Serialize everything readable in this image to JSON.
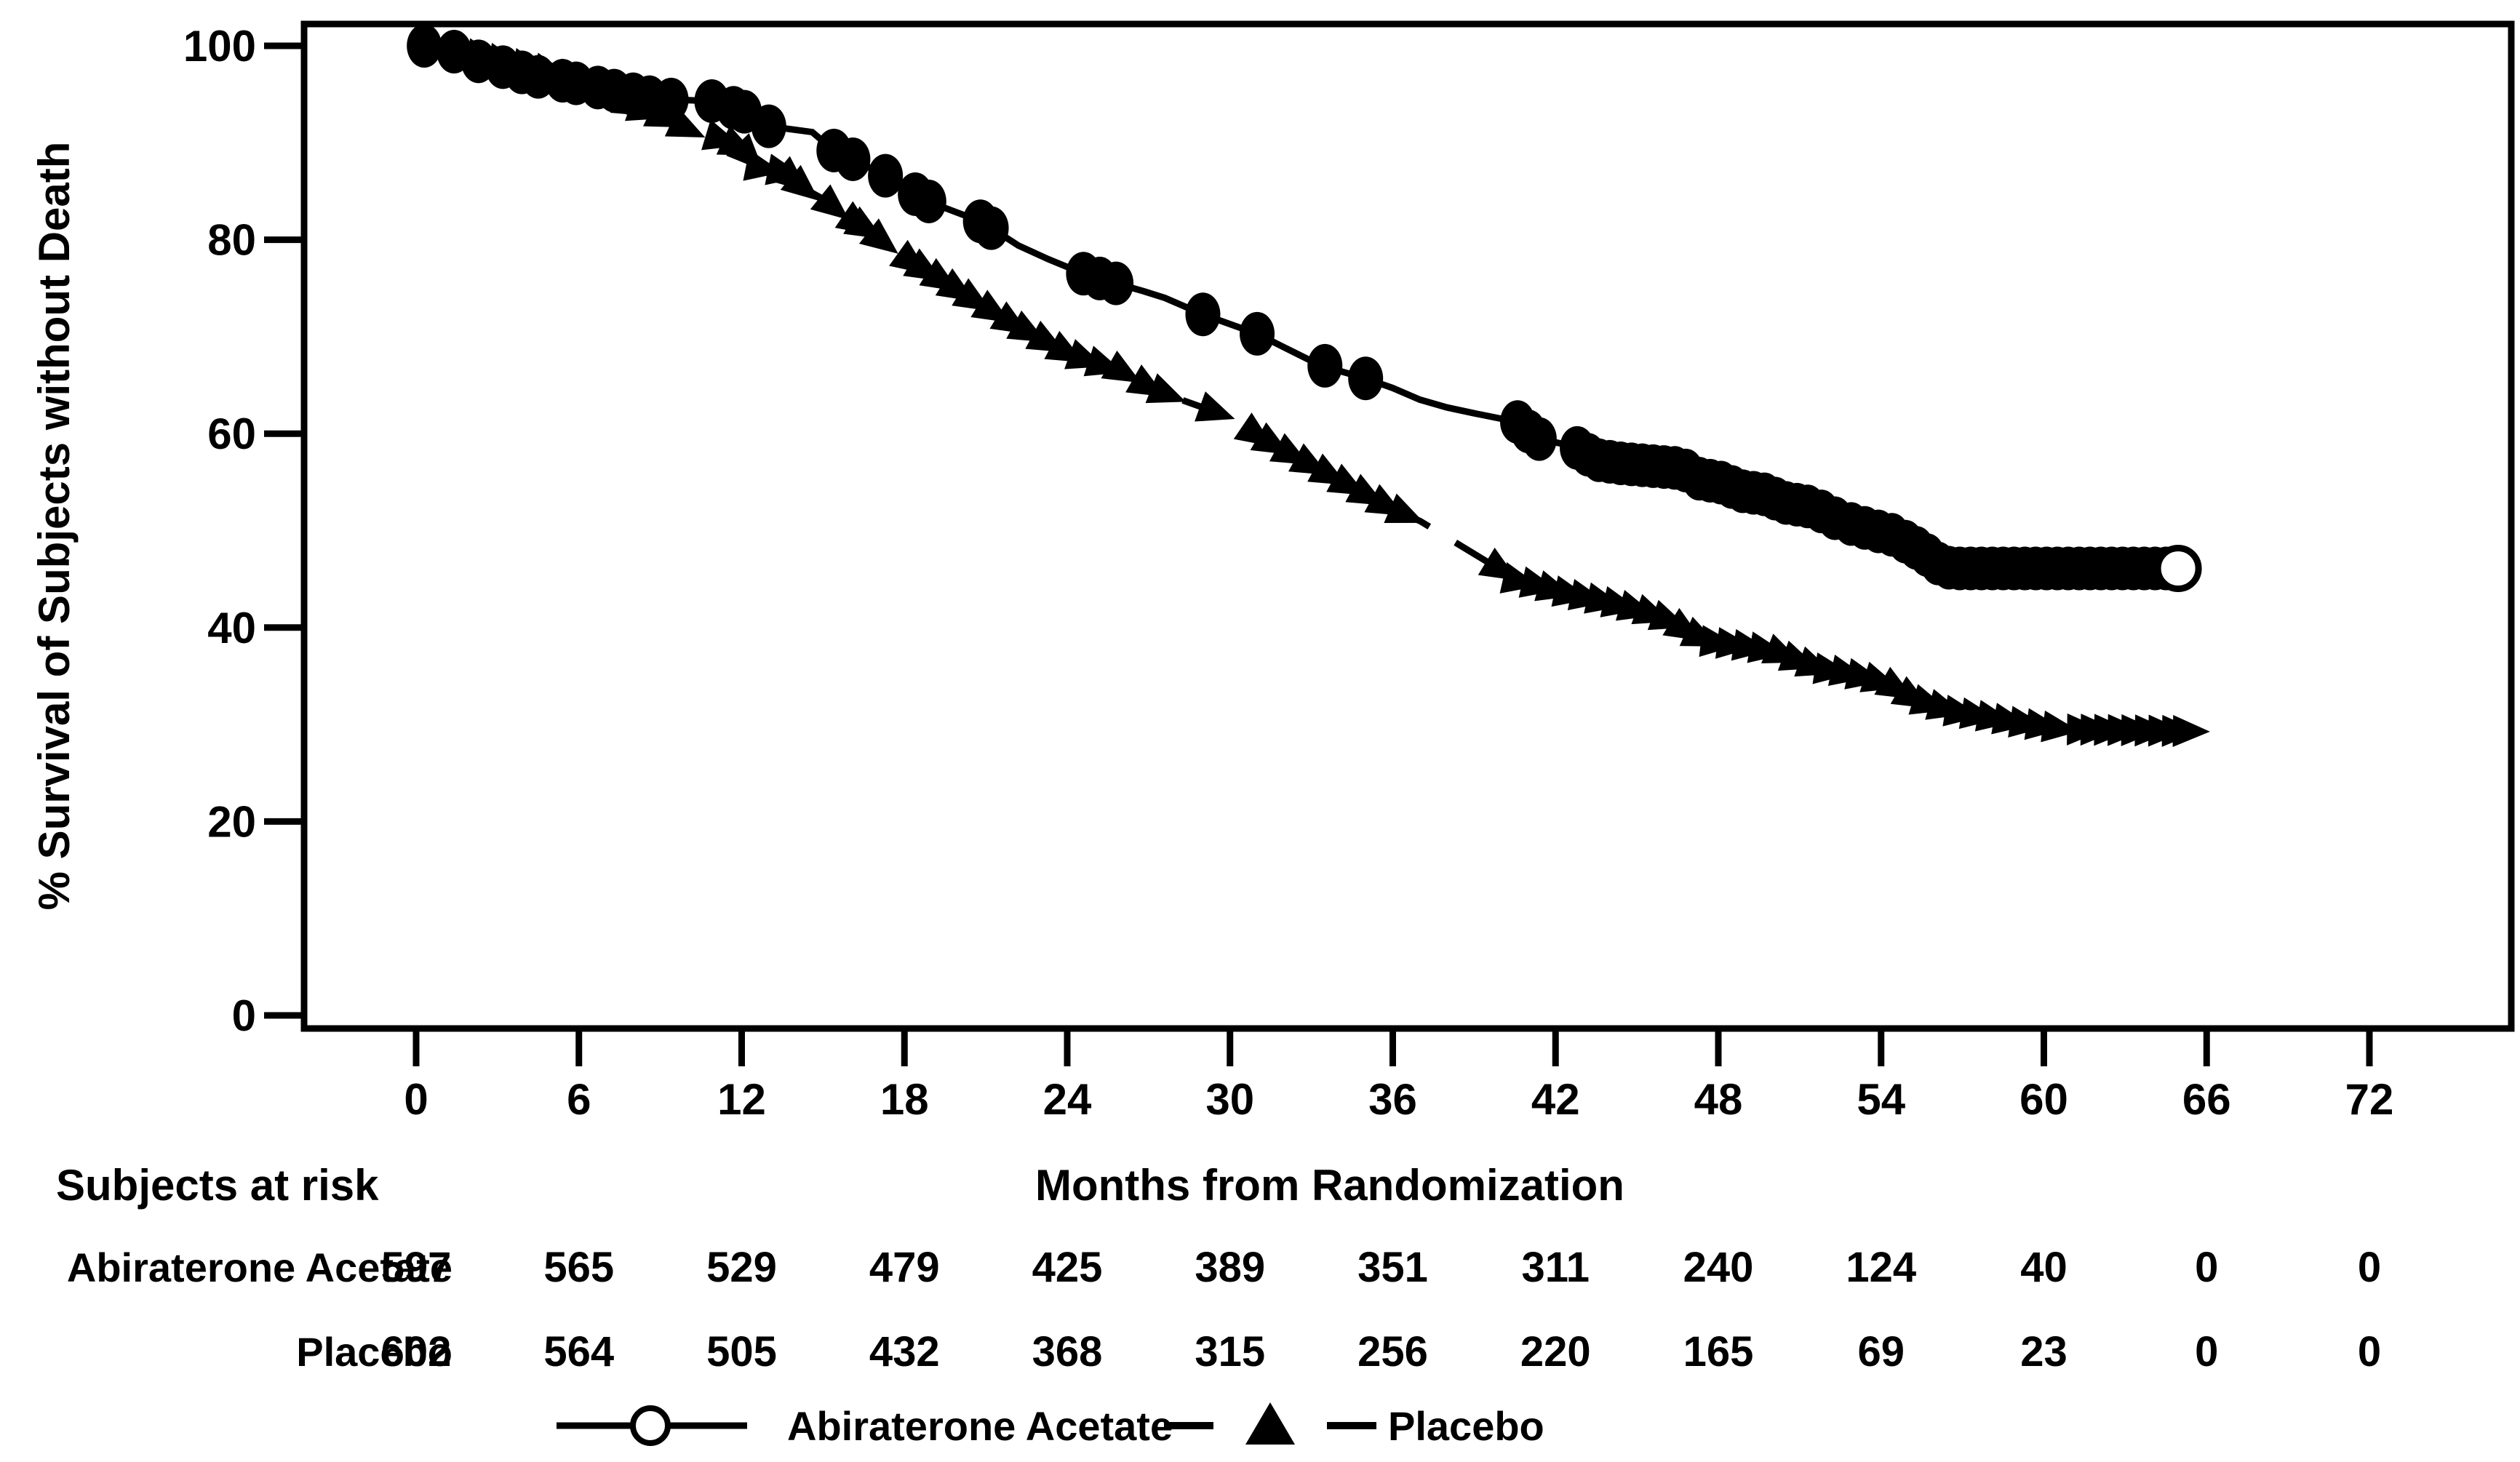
{
  "figure": {
    "ylabel": "% Survival of Subjects without Death",
    "xlabel": "Months from Randomization",
    "risk_header": "Subjects at risk"
  },
  "legend": {
    "position": "bottom",
    "items": [
      {
        "label": "Abiraterone Acetate",
        "line": "solid",
        "marker": "open-circle-icon"
      },
      {
        "label": "Placebo",
        "line": "dashed",
        "marker": "filled-triangle-icon"
      }
    ]
  },
  "colors": {
    "ink": "#000000",
    "background": "#ffffff"
  },
  "chart_data": {
    "type": "line",
    "subtype": "kaplan-meier-step",
    "title": "",
    "xlabel": "Months from Randomization",
    "ylabel": "% Survival of Subjects without Death",
    "xlim": [
      0,
      72
    ],
    "ylim": [
      0,
      100
    ],
    "xticks": [
      0,
      6,
      12,
      18,
      24,
      30,
      36,
      42,
      48,
      54,
      60,
      66,
      72
    ],
    "yticks": [
      0,
      20,
      40,
      60,
      80,
      100
    ],
    "grid": false,
    "legend_position": "bottom",
    "series": [
      {
        "name": "Abiraterone Acetate",
        "line": "solid",
        "marker": "filled-circle",
        "end_marker": "open-circle",
        "end_marker_point": [
          64.95,
          46.1
        ],
        "points": [
          [
            0.3,
            100
          ],
          [
            1.4,
            99.4
          ],
          [
            2.3,
            98.4
          ],
          [
            3.2,
            97.8
          ],
          [
            4.5,
            96.8
          ],
          [
            5.4,
            96.4
          ],
          [
            6.7,
            95.7
          ],
          [
            8,
            95
          ],
          [
            9,
            94.5
          ],
          [
            10.9,
            94.3
          ],
          [
            11.7,
            93.6
          ],
          [
            12.1,
            93.2
          ],
          [
            13,
            91.7
          ],
          [
            14.6,
            91.1
          ],
          [
            15.4,
            89.2
          ],
          [
            16.1,
            88.3
          ],
          [
            17.3,
            86.6
          ],
          [
            18.4,
            84.7
          ],
          [
            19,
            83.8
          ],
          [
            20.8,
            81.9
          ],
          [
            21.2,
            81.2
          ],
          [
            22.2,
            79.4
          ],
          [
            23.3,
            78
          ],
          [
            24.6,
            76.5
          ],
          [
            25.2,
            76
          ],
          [
            25.8,
            75.5
          ],
          [
            26.8,
            74.7
          ],
          [
            27.6,
            74
          ],
          [
            29,
            72.3
          ],
          [
            30,
            71.3
          ],
          [
            31,
            70.3
          ],
          [
            32,
            68.9
          ],
          [
            33,
            67.5
          ],
          [
            34,
            66.5
          ],
          [
            35,
            65.7
          ],
          [
            36,
            64.7
          ],
          [
            37,
            63.5
          ],
          [
            38,
            62.7
          ],
          [
            39,
            62.1
          ],
          [
            40.6,
            61.2
          ],
          [
            41.3,
            59.5
          ],
          [
            42.7,
            58.7
          ],
          [
            43.5,
            57.3
          ],
          [
            44.5,
            56.9
          ],
          [
            46.7,
            56.4
          ],
          [
            47.2,
            55.4
          ],
          [
            48.2,
            54.9
          ],
          [
            48.8,
            54.1
          ],
          [
            49.8,
            53.7
          ],
          [
            50.4,
            52.9
          ],
          [
            51.5,
            52.4
          ],
          [
            52.5,
            51
          ],
          [
            53.5,
            50.2
          ],
          [
            54.5,
            49.5
          ],
          [
            55.5,
            47.9
          ],
          [
            56.2,
            46.4
          ],
          [
            56.6,
            46.1
          ],
          [
            64.6,
            46.1
          ]
        ],
        "marker_months": [
          0.3,
          1.4,
          2.3,
          3.2,
          3.9,
          4.5,
          5.4,
          5.9,
          6.7,
          7.3,
          8,
          8.6,
          9.4,
          10.9,
          11.7,
          12.1,
          13,
          15.4,
          16.1,
          17.3,
          18.4,
          18.9,
          20.8,
          21.2,
          24.6,
          25.2,
          25.8,
          29,
          31,
          33.5,
          35,
          40.6,
          41,
          41.4,
          42.8,
          43.2,
          43.6,
          44,
          44.4,
          44.8,
          45.2,
          45.6,
          46,
          46.4,
          46.8,
          47.3,
          47.7,
          48.1,
          48.5,
          48.9,
          49.3,
          49.7,
          50.1,
          50.5,
          50.9,
          51.3,
          51.8,
          52.3,
          52.9,
          53.4,
          53.9,
          54.4,
          54.9,
          55.3,
          55.7,
          56.1,
          56.5,
          56.9,
          57.3,
          57.7,
          58.1,
          58.5,
          58.9,
          59.3,
          59.7,
          60.1,
          60.5,
          60.9,
          61.3,
          61.7,
          62.1,
          62.5,
          62.9,
          63.3,
          63.7,
          64.1,
          64.5
        ]
      },
      {
        "name": "Placebo",
        "line": "dashed",
        "marker": "filled-triangle",
        "points": [
          [
            0.3,
            100
          ],
          [
            1.5,
            99.4
          ],
          [
            3,
            98.5
          ],
          [
            4,
            97.9
          ],
          [
            5,
            97.3
          ],
          [
            6,
            96.4
          ],
          [
            7,
            95.2
          ],
          [
            8,
            93.7
          ],
          [
            9,
            92.7
          ],
          [
            10,
            91.4
          ],
          [
            11.3,
            90.3
          ],
          [
            12,
            89.4
          ],
          [
            12.7,
            87.4
          ],
          [
            13.6,
            86.9
          ],
          [
            14.3,
            85.3
          ],
          [
            15,
            84.2
          ],
          [
            15.4,
            83.3
          ],
          [
            16.3,
            81.6
          ],
          [
            16.6,
            81.1
          ],
          [
            17.2,
            79.8
          ],
          [
            18.3,
            77.6
          ],
          [
            19.2,
            76.1
          ],
          [
            20,
            74.7
          ],
          [
            21,
            73
          ],
          [
            22,
            71.3
          ],
          [
            23,
            69.8
          ],
          [
            24,
            68.3
          ],
          [
            25,
            67.3
          ],
          [
            26,
            66.4
          ],
          [
            27,
            64.8
          ],
          [
            28,
            63.7
          ],
          [
            29,
            62.7
          ],
          [
            30,
            61.7
          ],
          [
            31,
            59.8
          ],
          [
            32,
            58.2
          ],
          [
            33,
            56.7
          ],
          [
            34,
            55.2
          ],
          [
            35,
            53.7
          ],
          [
            36,
            52.2
          ],
          [
            37,
            51
          ],
          [
            38,
            49.3
          ],
          [
            39,
            47.6
          ],
          [
            40,
            45.9
          ],
          [
            40.6,
            44.8
          ],
          [
            41.4,
            44.3
          ],
          [
            42.4,
            43.5
          ],
          [
            43.4,
            42.9
          ],
          [
            44.5,
            42.2
          ],
          [
            45.5,
            41.4
          ],
          [
            46.2,
            40.7
          ],
          [
            46.9,
            39.5
          ],
          [
            47.7,
            38.5
          ],
          [
            48.6,
            38.2
          ],
          [
            49.3,
            37.9
          ],
          [
            50.1,
            37.5
          ],
          [
            50.9,
            36.6
          ],
          [
            51.8,
            35.7
          ],
          [
            52.5,
            35.4
          ],
          [
            53.5,
            34.8
          ],
          [
            54.3,
            34.1
          ],
          [
            55.3,
            32.5
          ],
          [
            56,
            31.9
          ],
          [
            56.9,
            31.2
          ],
          [
            58,
            30.7
          ],
          [
            59,
            30.2
          ],
          [
            60,
            29.8
          ],
          [
            60.8,
            29.5
          ],
          [
            65.4,
            29.3
          ]
        ],
        "marker_months": [
          2.5,
          3.3,
          4.2,
          5,
          5.8,
          7,
          8,
          8.5,
          9.2,
          10,
          11.3,
          11.9,
          12.3,
          12.8,
          13.6,
          13.9,
          14.3,
          15.4,
          16.3,
          16.6,
          17.2,
          18.3,
          18.8,
          19.4,
          20,
          20.6,
          21.3,
          22,
          22.6,
          23.3,
          24,
          24.7,
          25.4,
          26.1,
          27,
          27.7,
          29.5,
          31,
          31.6,
          32.3,
          33,
          33.7,
          34.4,
          35.1,
          35.8,
          36.5,
          40,
          40.7,
          41.4,
          42,
          42.6,
          43.2,
          43.8,
          44.4,
          45,
          45.6,
          46.2,
          46.8,
          47.4,
          48,
          48.6,
          49.2,
          49.8,
          50.4,
          51,
          51.6,
          52.2,
          52.8,
          53.4,
          54,
          54.6,
          55.2,
          55.8,
          56.4,
          57,
          57.6,
          58.2,
          58.8,
          59.4,
          60,
          60.6,
          61.5,
          62,
          62.5,
          63,
          63.5,
          64,
          64.5,
          65,
          65.4
        ]
      }
    ],
    "risk_table": {
      "header": "Subjects at risk",
      "months": [
        0,
        6,
        12,
        18,
        24,
        30,
        36,
        42,
        48,
        54,
        60,
        66,
        72
      ],
      "rows": [
        {
          "label": "Abiraterone Acetate",
          "counts": [
            597,
            565,
            529,
            479,
            425,
            389,
            351,
            311,
            240,
            124,
            40,
            0,
            0
          ]
        },
        {
          "label": "Placebo",
          "counts": [
            602,
            564,
            505,
            432,
            368,
            315,
            256,
            220,
            165,
            69,
            23,
            0,
            0
          ]
        }
      ]
    }
  }
}
